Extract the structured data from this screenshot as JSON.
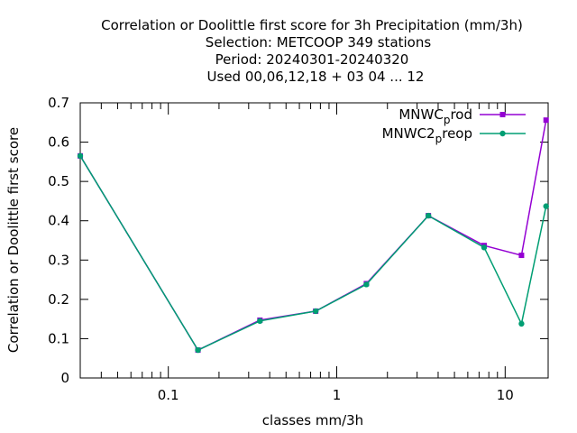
{
  "title_lines": [
    "Correlation or Doolittle first score  for 3h Precipitation (mm/3h)",
    "Selection: METCOOP    349 stations",
    "Period: 20240301-20240320",
    "Used  00,06,12,18 + 03 04 ... 12"
  ],
  "chart_data": {
    "type": "line",
    "xscale": "log",
    "xlim": [
      0.03,
      18
    ],
    "ylim": [
      0,
      0.7
    ],
    "xlabel": "classes mm/3h",
    "ylabel": "Correlation or Doolittle first score",
    "x_ticks": [
      0.1,
      1,
      10
    ],
    "x_tick_labels": [
      "0.1",
      "1",
      "10"
    ],
    "y_ticks": [
      0,
      0.1,
      0.2,
      0.3,
      0.4,
      0.5,
      0.6,
      0.7
    ],
    "y_tick_labels": [
      "0",
      "0.1",
      "0.2",
      "0.3",
      "0.4",
      "0.5",
      "0.6",
      "0.7"
    ],
    "grid": false,
    "legend_position": "top-right",
    "x": [
      0.03,
      0.15,
      0.35,
      0.75,
      1.5,
      3.5,
      7.5,
      12.5,
      17.5
    ],
    "series": [
      {
        "name": "MNWC_prod",
        "legend_main": "MNWC",
        "legend_sub": "p",
        "legend_tail": "rod",
        "color": "#9400d3",
        "values": [
          0.565,
          0.071,
          0.147,
          0.17,
          0.24,
          0.413,
          0.337,
          0.312,
          0.656
        ]
      },
      {
        "name": "MNWC2_preop",
        "legend_main": "MNWC2",
        "legend_sub": "p",
        "legend_tail": "reop",
        "color": "#009e73",
        "values": [
          0.565,
          0.071,
          0.145,
          0.17,
          0.238,
          0.413,
          0.332,
          0.138,
          0.437
        ]
      }
    ]
  }
}
